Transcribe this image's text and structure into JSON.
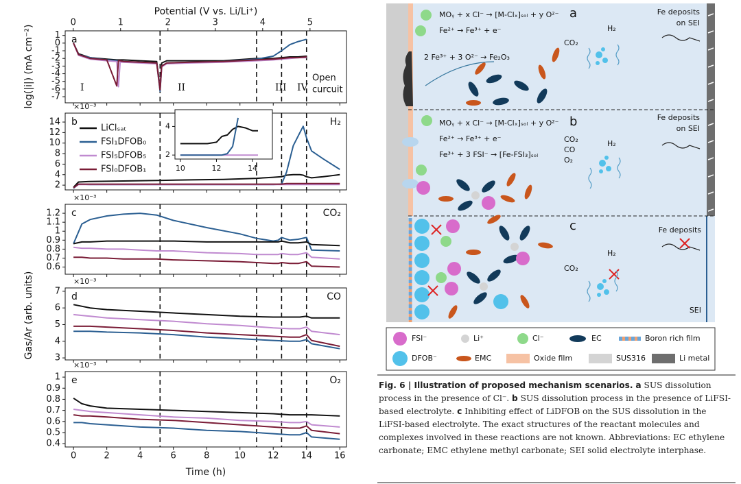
{
  "chart_data": [
    {
      "type": "line",
      "label": "a",
      "ylabel": "log(|i|) (mA cm⁻²)",
      "x2label": "Potential (V vs. Li/Li⁺)",
      "x2lim": [
        -0.17,
        5.77
      ],
      "x2ticks": [
        0,
        1,
        2,
        3,
        4,
        5
      ],
      "xlim": [
        -0.5,
        16.4
      ],
      "ylim": [
        -7.8,
        1.6
      ],
      "yticks": [
        1,
        0,
        -1,
        -2,
        -3,
        -4,
        -5,
        -6,
        -7
      ],
      "vlines": [
        5.2,
        11,
        12.5,
        14
      ],
      "region_labels": [
        "I",
        "II",
        "III",
        "IV"
      ],
      "open_circuit": [
        "Open",
        "curcuit"
      ],
      "x": [
        0,
        0.3,
        1,
        2,
        2.6,
        2.7,
        2.8,
        3,
        4,
        5,
        5.2,
        5.3,
        5.6,
        7,
        9,
        11,
        12,
        12.5,
        13,
        13.5,
        14
      ],
      "series": [
        {
          "color": "#111111",
          "values": [
            0,
            -1.4,
            -1.9,
            -2.1,
            -2.2,
            -2.2,
            -2.2,
            -2.2,
            -2.3,
            -2.4,
            -5.8,
            -2.6,
            -2.3,
            -2.3,
            -2.3,
            -2.0,
            -2.0,
            -1.9,
            -1.8,
            -1.8,
            -1.7
          ]
        },
        {
          "color": "#2b5f92",
          "values": [
            0,
            -1.5,
            -1.9,
            -2.2,
            -2.3,
            -2.3,
            -2.3,
            -2.4,
            -2.5,
            -2.6,
            -6.3,
            -3.0,
            -2.6,
            -2.5,
            -2.4,
            -2.1,
            -1.7,
            -1.0,
            -0.2,
            0.2,
            0.5
          ]
        },
        {
          "color": "#c08ad0",
          "values": [
            0,
            -1.6,
            -2.1,
            -2.3,
            -2.4,
            -5.7,
            -2.5,
            -2.5,
            -2.6,
            -2.7,
            -6.0,
            -3.1,
            -2.7,
            -2.6,
            -2.5,
            -2.3,
            -2.2,
            -2.1,
            -2.0,
            -1.9,
            -1.9
          ]
        },
        {
          "color": "#7a1c36",
          "values": [
            0,
            -1.5,
            -2.0,
            -2.2,
            -5.6,
            -2.3,
            -2.3,
            -2.4,
            -2.5,
            -2.6,
            -6.1,
            -3.0,
            -2.6,
            -2.5,
            -2.4,
            -2.2,
            -2.1,
            -2.0,
            -1.9,
            -1.9,
            -1.8
          ]
        }
      ]
    },
    {
      "type": "line",
      "label": "b",
      "gas": "H₂",
      "multiplier": "×10⁻³",
      "xlim": [
        -0.5,
        16.4
      ],
      "ylim": [
        1.1,
        15.7
      ],
      "yticks": [
        2,
        4,
        6,
        8,
        10,
        12,
        14
      ],
      "x": [
        0,
        0.3,
        1,
        3,
        5,
        7,
        9,
        11,
        12,
        12.5,
        12.8,
        13.2,
        13.6,
        13.8,
        14,
        14.3,
        15,
        16
      ],
      "series": [
        {
          "name": "LiClₛₐₜ",
          "color": "#111111",
          "values": [
            1.6,
            2.6,
            2.7,
            2.8,
            2.9,
            3.0,
            3.1,
            3.3,
            3.5,
            3.6,
            3.9,
            4.0,
            4.0,
            3.9,
            3.6,
            3.4,
            3.6,
            4.0
          ]
        },
        {
          "name": "FSI₁DFOB₀",
          "color": "#2b5f92",
          "values": [
            1.4,
            2.2,
            2.1,
            2.1,
            2.1,
            2.1,
            2.1,
            2.1,
            2.1,
            2.2,
            4.5,
            9.5,
            12.0,
            13.2,
            11,
            8.5,
            7,
            5
          ]
        },
        {
          "name": "FSI₅DFOB₅",
          "color": "#c08ad0",
          "values": [
            1.5,
            2.1,
            2.1,
            2.1,
            2.1,
            2.1,
            2.1,
            2.1,
            2.1,
            2.1,
            2.1,
            2.1,
            2.1,
            2.1,
            2.1,
            2.1,
            2.1,
            2.1
          ]
        },
        {
          "name": "FSI₀DFOB₁",
          "color": "#7a1c36",
          "values": [
            1.5,
            2.2,
            2.2,
            2.2,
            2.2,
            2.2,
            2.2,
            2.2,
            2.2,
            2.2,
            2.3,
            2.3,
            2.3,
            2.3,
            2.3,
            2.3,
            2.3,
            2.3
          ]
        }
      ]
    },
    {
      "type": "line",
      "label": "c",
      "gas": "CO₂",
      "multiplier": "×10⁻³",
      "ylabel": "Gas/Ar (arb. units)",
      "xlim": [
        -0.5,
        16.4
      ],
      "ylim": [
        0.52,
        1.3
      ],
      "yticks": [
        0.6,
        0.7,
        0.8,
        0.9,
        1.0,
        1.1,
        1.2
      ],
      "x": [
        0,
        0.5,
        1,
        2,
        3,
        4,
        5,
        6,
        8,
        10,
        11,
        12,
        12.3,
        12.5,
        13,
        13.5,
        14,
        14.3,
        16
      ],
      "series": [
        {
          "color": "#2b5f92",
          "values": [
            0.86,
            1.08,
            1.13,
            1.17,
            1.19,
            1.2,
            1.18,
            1.12,
            1.04,
            0.97,
            0.92,
            0.89,
            0.9,
            0.93,
            0.9,
            0.91,
            0.93,
            0.79,
            0.78
          ]
        },
        {
          "color": "#111111",
          "values": [
            0.86,
            0.88,
            0.88,
            0.89,
            0.89,
            0.89,
            0.89,
            0.89,
            0.88,
            0.88,
            0.88,
            0.88,
            0.88,
            0.89,
            0.87,
            0.87,
            0.88,
            0.85,
            0.84
          ]
        },
        {
          "color": "#c08ad0",
          "values": [
            0.82,
            0.81,
            0.81,
            0.8,
            0.8,
            0.79,
            0.78,
            0.78,
            0.76,
            0.75,
            0.74,
            0.74,
            0.74,
            0.75,
            0.74,
            0.74,
            0.76,
            0.71,
            0.69
          ]
        },
        {
          "color": "#7a1c36",
          "values": [
            0.71,
            0.71,
            0.7,
            0.7,
            0.69,
            0.69,
            0.69,
            0.68,
            0.67,
            0.66,
            0.65,
            0.64,
            0.64,
            0.65,
            0.64,
            0.64,
            0.66,
            0.61,
            0.6
          ]
        }
      ]
    },
    {
      "type": "line",
      "label": "d",
      "gas": "CO",
      "multiplier": "×10⁻³",
      "xlim": [
        -0.5,
        16.4
      ],
      "ylim": [
        2.88,
        7.2
      ],
      "yticks": [
        3,
        4,
        5,
        6,
        7
      ],
      "x": [
        0,
        1,
        2,
        4,
        6,
        8,
        10,
        12,
        13,
        13.6,
        14,
        14.3,
        16
      ],
      "series": [
        {
          "color": "#111111",
          "values": [
            6.2,
            6.0,
            5.9,
            5.8,
            5.7,
            5.6,
            5.5,
            5.45,
            5.45,
            5.45,
            5.5,
            5.4,
            5.4
          ]
        },
        {
          "color": "#c08ad0",
          "values": [
            5.6,
            5.5,
            5.4,
            5.3,
            5.2,
            5.05,
            4.95,
            4.8,
            4.75,
            4.75,
            4.85,
            4.6,
            4.4
          ]
        },
        {
          "color": "#7a1c36",
          "values": [
            4.9,
            4.9,
            4.85,
            4.75,
            4.65,
            4.5,
            4.4,
            4.3,
            4.25,
            4.25,
            4.4,
            4.05,
            3.7
          ]
        },
        {
          "color": "#2b5f92",
          "values": [
            4.6,
            4.6,
            4.55,
            4.5,
            4.4,
            4.25,
            4.15,
            4.05,
            4.0,
            4.0,
            4.1,
            3.85,
            3.55
          ]
        }
      ]
    },
    {
      "type": "line",
      "label": "e",
      "gas": "O₂",
      "multiplier": "×10⁻³",
      "xlabel": "Time (h)",
      "xlim": [
        -0.5,
        16.4
      ],
      "xticks": [
        0,
        2,
        4,
        6,
        8,
        10,
        12,
        14,
        16
      ],
      "ylim": [
        0.37,
        1.05
      ],
      "yticks": [
        0.4,
        0.5,
        0.6,
        0.7,
        0.8,
        0.9,
        1.0
      ],
      "x": [
        0,
        0.5,
        1,
        2,
        4,
        6,
        8,
        10,
        12,
        13,
        13.6,
        14,
        14.3,
        16
      ],
      "series": [
        {
          "color": "#111111",
          "values": [
            0.81,
            0.76,
            0.74,
            0.72,
            0.71,
            0.7,
            0.69,
            0.68,
            0.67,
            0.66,
            0.66,
            0.66,
            0.66,
            0.65
          ]
        },
        {
          "color": "#c08ad0",
          "values": [
            0.71,
            0.7,
            0.69,
            0.68,
            0.66,
            0.64,
            0.63,
            0.61,
            0.6,
            0.59,
            0.59,
            0.6,
            0.57,
            0.55
          ]
        },
        {
          "color": "#7a1c36",
          "values": [
            0.66,
            0.65,
            0.65,
            0.64,
            0.62,
            0.61,
            0.59,
            0.57,
            0.55,
            0.54,
            0.54,
            0.56,
            0.52,
            0.49
          ]
        },
        {
          "color": "#2b5f92",
          "values": [
            0.59,
            0.59,
            0.58,
            0.57,
            0.55,
            0.54,
            0.52,
            0.51,
            0.49,
            0.48,
            0.48,
            0.5,
            0.46,
            0.44
          ]
        }
      ]
    },
    {
      "type": "line",
      "xlim": [
        9.7,
        15.1
      ],
      "xticks": [
        10,
        12,
        14
      ],
      "ylim": [
        1.72,
        5.17
      ],
      "yticks": [
        2,
        4
      ],
      "x": [
        10,
        11,
        11.5,
        12,
        12.3,
        12.6,
        12.9,
        13.2,
        13.6,
        14,
        14.3
      ],
      "series": [
        {
          "color": "#c08ad0",
          "values": [
            2.0,
            2.0,
            2.0,
            2.0,
            2.0,
            2.0,
            2.0,
            2.0,
            2.0,
            2.0,
            2.0
          ]
        },
        {
          "color": "#111111",
          "values": [
            2.8,
            2.8,
            2.8,
            2.9,
            3.3,
            3.4,
            3.8,
            4.0,
            3.9,
            3.7,
            3.7
          ]
        },
        {
          "color": "#2b5f92",
          "values": [
            2.0,
            2.0,
            2.0,
            2.0,
            2.0,
            2.1,
            2.6,
            4.6,
            null,
            null,
            null
          ]
        }
      ]
    }
  ],
  "diagram": {
    "panels": [
      {
        "label": "a",
        "equations": [
          "MOᵧ + x Cl⁻ → [M-Clₓ]ₛₒₗ + y O²⁻",
          "Fe²⁺ → Fe³⁺ + e⁻",
          "2 Fe³⁺ + 3 O²⁻ → Fe₂O₃"
        ],
        "gases": [
          "CO₂",
          "H₂"
        ],
        "note": [
          "Fe deposits",
          "on SEI"
        ]
      },
      {
        "label": "b",
        "equations": [
          "MOᵧ + x Cl⁻ → [M-Clₓ]ₛₒₗ + y O²⁻",
          "Fe²⁺ → Fe³⁺ + e⁻",
          "Fe³⁺ + 3 FSI⁻ → [Fe-FSI₃]ₛₒₗ"
        ],
        "gases": [
          "CO₂",
          "CO",
          "O₂",
          "H₂"
        ],
        "note": [
          "Fe deposits",
          "on SEI"
        ]
      },
      {
        "label": "c",
        "gases": [
          "H₂",
          "CO₂"
        ],
        "note": [
          "Fe deposits"
        ],
        "interface": "SEI"
      }
    ],
    "legend": [
      "FSI⁻",
      "Li⁺",
      "Cl⁻",
      "EC",
      "Boron rich film",
      "DFOB⁻",
      "EMC",
      "Oxide film",
      "SUS316",
      "Li metal"
    ]
  },
  "caption": {
    "title": "Fig. 6 | Illustration of proposed mechanism scenarios.",
    "parts": [
      {
        "label": "a",
        "text": "SUS dissolution process in the presence of Cl⁻."
      },
      {
        "label": "b",
        "text": "SUS dissolution process in the presence of LiFSI-based electrolyte."
      },
      {
        "label": "c",
        "text": "Inhibiting effect of LiDFOB on the SUS dissolution in the LiFSI-based electrolyte."
      }
    ],
    "note": "The exact structures of the reactant molecules and complexes involved in these reactions are not known. Abbreviations: EC ethylene carbonate; EMC ethylene methyl carbonate; SEI solid electrolyte interphase."
  }
}
